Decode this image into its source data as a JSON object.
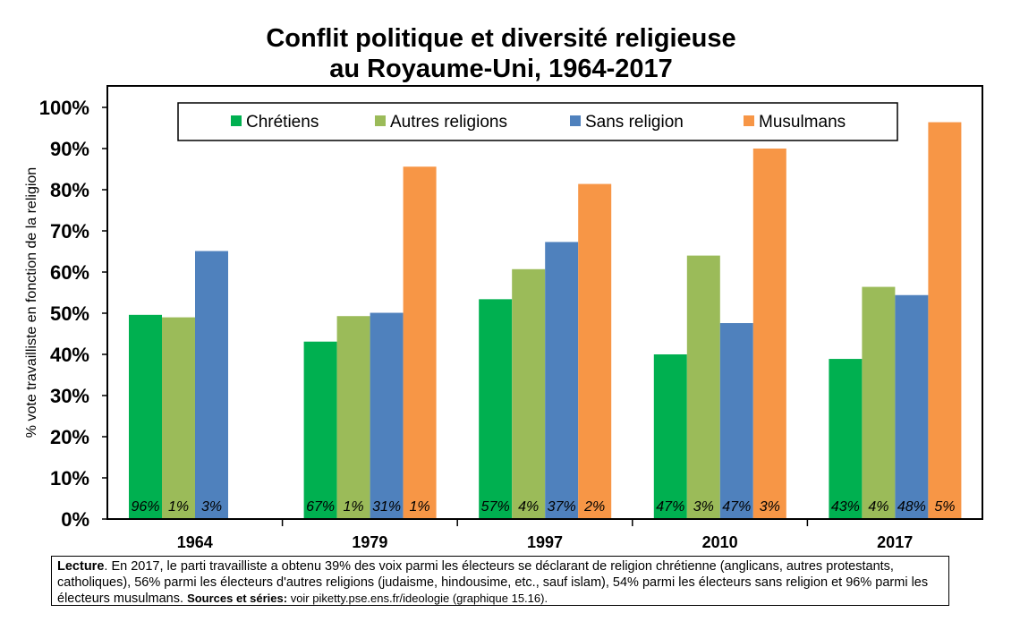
{
  "chart_data": {
    "type": "bar",
    "title_line1": "Conflit politique et diversité religieuse",
    "title_line2": "au Royaume-Uni, 1964-2017",
    "ylabel": "% vote travailliste en fonction de la religion",
    "ylim": [
      0,
      100
    ],
    "yticks": [
      "0%",
      "10%",
      "20%",
      "30%",
      "40%",
      "50%",
      "60%",
      "70%",
      "80%",
      "90%",
      "100%"
    ],
    "categories": [
      "1964",
      "1979",
      "1997",
      "2010",
      "2017"
    ],
    "legend_position": "top",
    "series": [
      {
        "name": "Chrétiens",
        "color": "#00B050",
        "values": [
          49.6,
          43.1,
          53.4,
          40.0,
          38.9
        ],
        "labels": [
          "96%",
          "67%",
          "57%",
          "47%",
          "43%"
        ]
      },
      {
        "name": "Autres religions",
        "color": "#9BBB59",
        "values": [
          49.0,
          49.3,
          60.7,
          64.0,
          56.4
        ],
        "labels": [
          "1%",
          "1%",
          "4%",
          "3%",
          "4%"
        ]
      },
      {
        "name": "Sans religion",
        "color": "#4F81BD",
        "values": [
          65.1,
          50.1,
          67.3,
          47.6,
          54.4
        ],
        "labels": [
          "3%",
          "31%",
          "37%",
          "47%",
          "48%"
        ]
      },
      {
        "name": "Musulmans",
        "color": "#F79646",
        "values": [
          null,
          85.6,
          81.4,
          90.0,
          96.4
        ],
        "labels": [
          null,
          "1%",
          "2%",
          "3%",
          "5%"
        ]
      }
    ]
  },
  "note": {
    "lead": "Lecture",
    "text": ". En 2017, le parti travailliste a obtenu 39% des voix parmi les électeurs se déclarant de religion chrétienne (anglicans, autres protestants, catholiques), 56% parmi les électeurs d'autres religions (judaisme, hindousime, etc., sauf islam), 54% parmi les électeurs sans religion et 96% parmi les électeurs musulmans. ",
    "sources_label": "Sources et séries:",
    "sources_text": " voir piketty.pse.ens.fr/ideologie (graphique 15.16)."
  }
}
